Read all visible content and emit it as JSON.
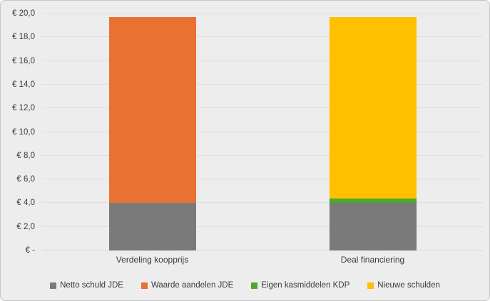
{
  "chart": {
    "background_color": "#EEEDED",
    "border_color": "#C6C6C6",
    "gridline_color": "#E0DFDF",
    "axis_line_color": "#D6D5D5",
    "text_color": "#3A3A3A"
  },
  "chart_data": {
    "type": "bar",
    "subtype": "stacked",
    "title": "",
    "xlabel": "",
    "ylabel": "",
    "categories": [
      "Verdeling koopprijs",
      "Deal financiering"
    ],
    "series": [
      {
        "name": "Netto schuld JDE",
        "color": "#7A7A7A",
        "values": [
          4.0,
          4.0
        ]
      },
      {
        "name": "Waarde aandelen JDE",
        "color": "#E97132",
        "values": [
          15.7,
          0
        ]
      },
      {
        "name": "Eigen kasmiddelen KDP",
        "color": "#4EA72E",
        "values": [
          0,
          0.4
        ]
      },
      {
        "name": "Nieuwe schulden",
        "color": "#FFC000",
        "values": [
          0,
          15.3
        ]
      }
    ],
    "ylim": [
      0,
      20
    ],
    "y_tick_step": 2,
    "y_tick_labels": [
      "€ -",
      "€ 2,0",
      "€ 4,0",
      "€ 6,0",
      "€ 8,0",
      "€ 10,0",
      "€ 12,0",
      "€ 14,0",
      "€ 16,0",
      "€ 18,0",
      "€ 20,0"
    ],
    "currency": "EUR",
    "grid": true,
    "legend_position": "bottom"
  }
}
